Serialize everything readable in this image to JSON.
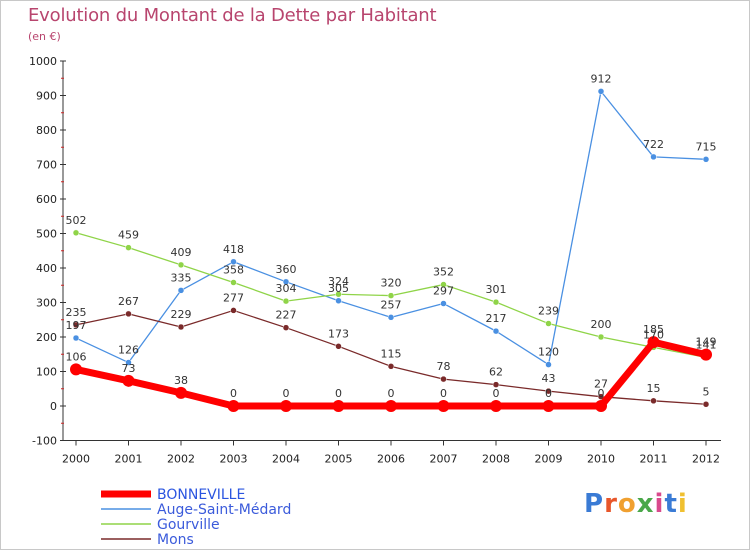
{
  "title": "Evolution du Montant de la Dette par Habitant",
  "subtitle": "(en €)",
  "logo_text": "Proxiti",
  "chart_data": {
    "type": "line",
    "x": [
      "2000",
      "2001",
      "2002",
      "2003",
      "2004",
      "2005",
      "2006",
      "2007",
      "2008",
      "2009",
      "2010",
      "2011",
      "2012"
    ],
    "ylim": [
      -100,
      1000
    ],
    "yticks": [
      -100,
      0,
      100,
      200,
      300,
      400,
      500,
      600,
      700,
      800,
      900,
      1000
    ],
    "grid": false,
    "legend_position": "bottom-left",
    "series": [
      {
        "name": "BONNEVILLE",
        "color": "#ff0000",
        "values": [
          106,
          73,
          38,
          0,
          0,
          0,
          0,
          0,
          0,
          0,
          0,
          185,
          149
        ]
      },
      {
        "name": "Auge-Saint-Médard",
        "color": "#4a90e2",
        "values": [
          197,
          126,
          335,
          418,
          360,
          305,
          257,
          297,
          217,
          120,
          912,
          722,
          715
        ]
      },
      {
        "name": "Gourville",
        "color": "#8fd448",
        "values": [
          502,
          459,
          409,
          358,
          304,
          324,
          320,
          352,
          301,
          239,
          200,
          170,
          141
        ]
      },
      {
        "name": "Mons",
        "color": "#7a2a2a",
        "values": [
          235,
          267,
          229,
          277,
          227,
          173,
          115,
          78,
          62,
          43,
          27,
          15,
          5
        ]
      }
    ]
  }
}
